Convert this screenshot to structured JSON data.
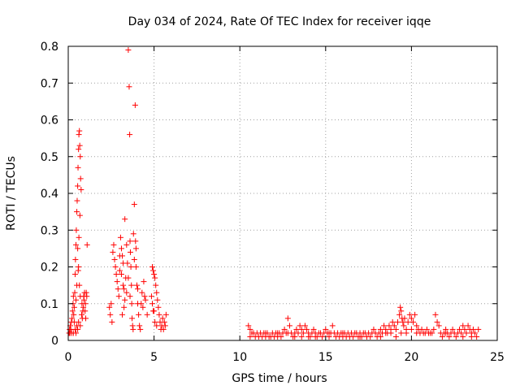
{
  "chart_data": {
    "type": "scatter",
    "title": "Day 034 of 2024, Rate Of TEC Index for receiver iqqe",
    "xlabel": "GPS time / hours",
    "ylabel": "ROTI / TECUs",
    "xlim": [
      0,
      25
    ],
    "ylim": [
      0,
      0.8
    ],
    "xticks": [
      0,
      5,
      10,
      15,
      20,
      25
    ],
    "xtick_labels": [
      "0",
      "5",
      "10",
      "15",
      "20",
      "25"
    ],
    "yticks": [
      0,
      0.1,
      0.2,
      0.3,
      0.4,
      0.5,
      0.6,
      0.7,
      0.8
    ],
    "ytick_labels": [
      "0",
      "0.1",
      "0.2",
      "0.3",
      "0.4",
      "0.5",
      "0.6",
      "0.7",
      "0.8"
    ],
    "grid": true,
    "marker": "+",
    "marker_color": "#ff0000",
    "series": [
      {
        "name": "ROTI",
        "points": [
          [
            0.05,
            0.02
          ],
          [
            0.08,
            0.03
          ],
          [
            0.1,
            0.02
          ],
          [
            0.12,
            0.04
          ],
          [
            0.15,
            0.03
          ],
          [
            0.18,
            0.05
          ],
          [
            0.2,
            0.02
          ],
          [
            0.22,
            0.06
          ],
          [
            0.25,
            0.08
          ],
          [
            0.28,
            0.1
          ],
          [
            0.3,
            0.12
          ],
          [
            0.32,
            0.07
          ],
          [
            0.35,
            0.05
          ],
          [
            0.38,
            0.13
          ],
          [
            0.4,
            0.18
          ],
          [
            0.42,
            0.22
          ],
          [
            0.45,
            0.26
          ],
          [
            0.47,
            0.3
          ],
          [
            0.5,
            0.35
          ],
          [
            0.52,
            0.38
          ],
          [
            0.55,
            0.42
          ],
          [
            0.57,
            0.47
          ],
          [
            0.6,
            0.52
          ],
          [
            0.62,
            0.56
          ],
          [
            0.65,
            0.57
          ],
          [
            0.67,
            0.53
          ],
          [
            0.7,
            0.5
          ],
          [
            0.72,
            0.44
          ],
          [
            0.75,
            0.41
          ],
          [
            0.55,
            0.25
          ],
          [
            0.6,
            0.2
          ],
          [
            0.65,
            0.15
          ],
          [
            0.7,
            0.12
          ],
          [
            0.8,
            0.1
          ],
          [
            0.85,
            0.08
          ],
          [
            0.9,
            0.12
          ],
          [
            0.95,
            0.13
          ],
          [
            1.0,
            0.1
          ],
          [
            1.05,
            0.13
          ],
          [
            1.1,
            0.26
          ],
          [
            0.4,
            0.03
          ],
          [
            0.45,
            0.02
          ],
          [
            0.5,
            0.04
          ],
          [
            0.55,
            0.03
          ],
          [
            0.6,
            0.05
          ],
          [
            0.7,
            0.04
          ],
          [
            0.3,
            0.02
          ],
          [
            0.35,
            0.09
          ],
          [
            0.45,
            0.11
          ],
          [
            0.5,
            0.15
          ],
          [
            0.58,
            0.19
          ],
          [
            0.62,
            0.28
          ],
          [
            0.68,
            0.34
          ],
          [
            0.78,
            0.07
          ],
          [
            0.82,
            0.06
          ],
          [
            0.88,
            0.09
          ],
          [
            0.92,
            0.11
          ],
          [
            0.98,
            0.08
          ],
          [
            1.02,
            0.06
          ],
          [
            1.08,
            0.12
          ],
          [
            2.4,
            0.09
          ],
          [
            2.45,
            0.07
          ],
          [
            2.5,
            0.1
          ],
          [
            2.55,
            0.05
          ],
          [
            2.6,
            0.24
          ],
          [
            2.65,
            0.26
          ],
          [
            2.7,
            0.22
          ],
          [
            2.75,
            0.2
          ],
          [
            2.8,
            0.18
          ],
          [
            2.85,
            0.16
          ],
          [
            2.9,
            0.14
          ],
          [
            2.95,
            0.12
          ],
          [
            3.0,
            0.19
          ],
          [
            3.05,
            0.28
          ],
          [
            3.1,
            0.25
          ],
          [
            3.15,
            0.23
          ],
          [
            3.2,
            0.15
          ],
          [
            3.25,
            0.09
          ],
          [
            3.3,
            0.33
          ],
          [
            3.35,
            0.17
          ],
          [
            3.4,
            0.13
          ],
          [
            3.45,
            0.21
          ],
          [
            3.5,
            0.79
          ],
          [
            3.55,
            0.69
          ],
          [
            3.58,
            0.56
          ],
          [
            3.6,
            0.27
          ],
          [
            3.62,
            0.24
          ],
          [
            3.65,
            0.2
          ],
          [
            3.68,
            0.15
          ],
          [
            3.7,
            0.1
          ],
          [
            3.72,
            0.06
          ],
          [
            3.75,
            0.04
          ],
          [
            3.78,
            0.03
          ],
          [
            3.8,
            0.29
          ],
          [
            3.85,
            0.37
          ],
          [
            3.9,
            0.64
          ],
          [
            3.92,
            0.27
          ],
          [
            3.95,
            0.2
          ],
          [
            4.0,
            0.15
          ],
          [
            4.05,
            0.1
          ],
          [
            4.1,
            0.07
          ],
          [
            4.15,
            0.04
          ],
          [
            4.2,
            0.03
          ],
          [
            4.25,
            0.1
          ],
          [
            4.3,
            0.13
          ],
          [
            4.35,
            0.09
          ],
          [
            4.4,
            0.16
          ],
          [
            4.45,
            0.12
          ],
          [
            4.5,
            0.11
          ],
          [
            4.6,
            0.07
          ],
          [
            3.0,
            0.23
          ],
          [
            3.1,
            0.18
          ],
          [
            3.2,
            0.21
          ],
          [
            3.4,
            0.26
          ],
          [
            3.5,
            0.17
          ],
          [
            3.6,
            0.12
          ],
          [
            3.3,
            0.11
          ],
          [
            3.15,
            0.07
          ],
          [
            3.25,
            0.14
          ],
          [
            3.85,
            0.22
          ],
          [
            3.95,
            0.25
          ],
          [
            4.05,
            0.14
          ],
          [
            4.9,
            0.2
          ],
          [
            4.95,
            0.19
          ],
          [
            5.0,
            0.18
          ],
          [
            5.05,
            0.17
          ],
          [
            5.1,
            0.15
          ],
          [
            5.15,
            0.13
          ],
          [
            5.2,
            0.11
          ],
          [
            5.25,
            0.09
          ],
          [
            5.3,
            0.07
          ],
          [
            4.95,
            0.08
          ],
          [
            5.05,
            0.05
          ],
          [
            5.15,
            0.04
          ],
          [
            5.35,
            0.05
          ],
          [
            5.45,
            0.04
          ],
          [
            5.55,
            0.03
          ],
          [
            5.6,
            0.05
          ],
          [
            5.7,
            0.07
          ],
          [
            5.5,
            0.06
          ],
          [
            5.4,
            0.03
          ],
          [
            5.65,
            0.04
          ],
          [
            4.85,
            0.12
          ],
          [
            4.9,
            0.1
          ],
          [
            5.0,
            0.08
          ],
          [
            10.5,
            0.04
          ],
          [
            10.6,
            0.03
          ],
          [
            10.7,
            0.02
          ],
          [
            10.8,
            0.02
          ],
          [
            10.9,
            0.01
          ],
          [
            11.0,
            0.02
          ],
          [
            11.1,
            0.01
          ],
          [
            11.2,
            0.02
          ],
          [
            11.3,
            0.01
          ],
          [
            11.4,
            0.02
          ],
          [
            11.5,
            0.01
          ],
          [
            11.6,
            0.02
          ],
          [
            11.7,
            0.01
          ],
          [
            11.8,
            0.01
          ],
          [
            11.9,
            0.02
          ],
          [
            12.0,
            0.01
          ],
          [
            12.1,
            0.02
          ],
          [
            12.2,
            0.01
          ],
          [
            12.3,
            0.02
          ],
          [
            12.4,
            0.01
          ],
          [
            12.5,
            0.02
          ],
          [
            12.6,
            0.03
          ],
          [
            12.7,
            0.02
          ],
          [
            12.8,
            0.06
          ],
          [
            12.9,
            0.04
          ],
          [
            13.0,
            0.02
          ],
          [
            13.1,
            0.01
          ],
          [
            13.2,
            0.02
          ],
          [
            13.3,
            0.03
          ],
          [
            13.4,
            0.02
          ],
          [
            13.5,
            0.04
          ],
          [
            13.6,
            0.03
          ],
          [
            13.7,
            0.02
          ],
          [
            13.8,
            0.04
          ],
          [
            13.9,
            0.03
          ],
          [
            14.0,
            0.02
          ],
          [
            14.1,
            0.01
          ],
          [
            14.2,
            0.02
          ],
          [
            14.3,
            0.03
          ],
          [
            14.4,
            0.02
          ],
          [
            14.5,
            0.01
          ],
          [
            14.6,
            0.02
          ],
          [
            14.7,
            0.02
          ],
          [
            14.8,
            0.01
          ],
          [
            14.9,
            0.02
          ],
          [
            15.0,
            0.03
          ],
          [
            15.1,
            0.02
          ],
          [
            15.2,
            0.01
          ],
          [
            15.3,
            0.02
          ],
          [
            15.4,
            0.04
          ],
          [
            15.5,
            0.02
          ],
          [
            15.6,
            0.01
          ],
          [
            15.7,
            0.02
          ],
          [
            15.8,
            0.01
          ],
          [
            15.9,
            0.02
          ],
          [
            16.0,
            0.01
          ],
          [
            16.1,
            0.02
          ],
          [
            16.2,
            0.01
          ],
          [
            16.3,
            0.02
          ],
          [
            16.4,
            0.01
          ],
          [
            16.5,
            0.02
          ],
          [
            16.6,
            0.01
          ],
          [
            16.7,
            0.02
          ],
          [
            16.8,
            0.02
          ],
          [
            16.9,
            0.01
          ],
          [
            17.0,
            0.02
          ],
          [
            17.1,
            0.01
          ],
          [
            17.2,
            0.02
          ],
          [
            17.3,
            0.02
          ],
          [
            17.4,
            0.01
          ],
          [
            17.5,
            0.02
          ],
          [
            17.6,
            0.01
          ],
          [
            17.7,
            0.02
          ],
          [
            17.8,
            0.03
          ],
          [
            17.9,
            0.02
          ],
          [
            18.0,
            0.01
          ],
          [
            18.1,
            0.02
          ],
          [
            18.2,
            0.03
          ],
          [
            18.3,
            0.02
          ],
          [
            18.4,
            0.04
          ],
          [
            18.5,
            0.03
          ],
          [
            18.6,
            0.02
          ],
          [
            18.7,
            0.04
          ],
          [
            18.8,
            0.03
          ],
          [
            18.9,
            0.05
          ],
          [
            19.0,
            0.04
          ],
          [
            19.1,
            0.03
          ],
          [
            19.2,
            0.05
          ],
          [
            19.3,
            0.07
          ],
          [
            19.35,
            0.09
          ],
          [
            19.4,
            0.08
          ],
          [
            19.45,
            0.06
          ],
          [
            19.5,
            0.05
          ],
          [
            19.55,
            0.04
          ],
          [
            19.6,
            0.06
          ],
          [
            19.7,
            0.03
          ],
          [
            19.8,
            0.05
          ],
          [
            19.9,
            0.07
          ],
          [
            20.0,
            0.06
          ],
          [
            20.1,
            0.05
          ],
          [
            20.2,
            0.07
          ],
          [
            20.3,
            0.04
          ],
          [
            20.4,
            0.03
          ],
          [
            20.5,
            0.02
          ],
          [
            20.6,
            0.03
          ],
          [
            20.7,
            0.02
          ],
          [
            20.8,
            0.02
          ],
          [
            20.9,
            0.03
          ],
          [
            21.0,
            0.02
          ],
          [
            21.1,
            0.02
          ],
          [
            21.2,
            0.02
          ],
          [
            21.3,
            0.03
          ],
          [
            21.4,
            0.07
          ],
          [
            21.5,
            0.05
          ],
          [
            21.6,
            0.04
          ],
          [
            21.7,
            0.02
          ],
          [
            21.8,
            0.01
          ],
          [
            21.9,
            0.02
          ],
          [
            22.0,
            0.03
          ],
          [
            22.1,
            0.02
          ],
          [
            22.2,
            0.01
          ],
          [
            22.3,
            0.02
          ],
          [
            22.4,
            0.03
          ],
          [
            22.5,
            0.02
          ],
          [
            22.6,
            0.01
          ],
          [
            22.7,
            0.02
          ],
          [
            22.8,
            0.03
          ],
          [
            22.9,
            0.02
          ],
          [
            23.0,
            0.04
          ],
          [
            23.1,
            0.03
          ],
          [
            23.2,
            0.02
          ],
          [
            23.3,
            0.04
          ],
          [
            23.4,
            0.03
          ],
          [
            23.5,
            0.02
          ],
          [
            23.6,
            0.03
          ],
          [
            23.7,
            0.02
          ],
          [
            23.8,
            0.01
          ],
          [
            23.9,
            0.03
          ],
          [
            18.2,
            0.01
          ],
          [
            18.5,
            0.02
          ],
          [
            18.8,
            0.02
          ],
          [
            19.1,
            0.01
          ],
          [
            19.4,
            0.02
          ],
          [
            19.7,
            0.02
          ],
          [
            20.0,
            0.03
          ],
          [
            20.3,
            0.02
          ],
          [
            12.8,
            0.02
          ],
          [
            13.2,
            0.01
          ],
          [
            13.6,
            0.01
          ],
          [
            14.0,
            0.01
          ],
          [
            14.4,
            0.01
          ],
          [
            15.2,
            0.02
          ],
          [
            16.0,
            0.02
          ],
          [
            17.0,
            0.01
          ],
          [
            22.0,
            0.02
          ],
          [
            23.0,
            0.01
          ],
          [
            23.5,
            0.01
          ],
          [
            10.6,
            0.01
          ],
          [
            11.5,
            0.02
          ],
          [
            12.2,
            0.02
          ]
        ]
      }
    ]
  }
}
